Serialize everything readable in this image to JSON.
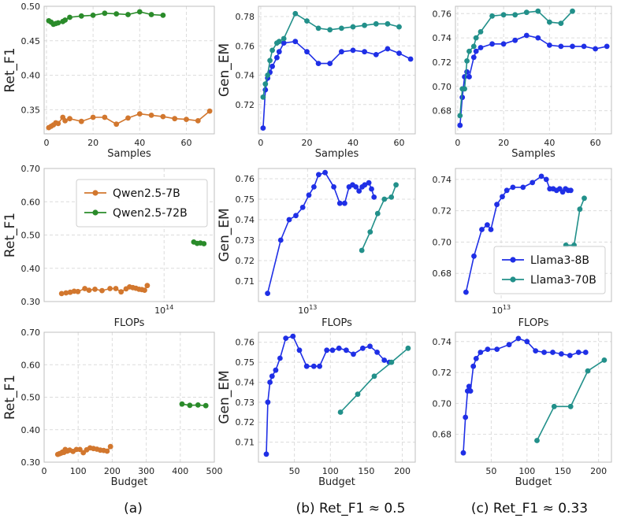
{
  "colors": {
    "qwen7": "#d2772e",
    "qwen72": "#2a8b2a",
    "llama8": "#1f2fe6",
    "llama70": "#22908a",
    "grid": "#dcdcdc",
    "frame": "#bfbfbf"
  },
  "captions": [
    "(a)",
    "(b) Ret_F1 ≈ 0.5",
    "(c) Ret_F1 ≈ 0.33"
  ],
  "legends": {
    "qwen": [
      "Qwen2.5-7B",
      "Qwen2.5-72B"
    ],
    "llama": [
      "Llama3-8B",
      "Llama3-70B"
    ]
  },
  "chart_data": [
    {
      "id": "a1",
      "type": "line",
      "xlabel": "Samples",
      "ylabel": "Ret_F1",
      "xscale": "linear",
      "xlim": [
        -1,
        72
      ],
      "ylim": [
        0.315,
        0.5
      ],
      "xticks": [
        0,
        20,
        40,
        60
      ],
      "xtick_labels": [
        "0",
        "20",
        "40",
        "60"
      ],
      "yticks": [
        0.35,
        0.4,
        0.45,
        0.5
      ],
      "ytick_labels": [
        "0.35",
        "0.40",
        "0.45",
        "0.50"
      ],
      "series": [
        {
          "name": "Qwen2.5-7B",
          "color_key": "qwen7",
          "x": [
            1,
            2,
            3,
            4,
            5,
            7,
            8,
            10,
            15,
            20,
            25,
            30,
            35,
            40,
            45,
            50,
            55,
            60,
            65,
            70
          ],
          "y": [
            0.324,
            0.326,
            0.328,
            0.331,
            0.33,
            0.339,
            0.334,
            0.337,
            0.333,
            0.339,
            0.339,
            0.329,
            0.338,
            0.344,
            0.342,
            0.34,
            0.337,
            0.336,
            0.334,
            0.348
          ]
        },
        {
          "name": "Qwen2.5-72B",
          "color_key": "qwen72",
          "x": [
            1,
            2,
            3,
            4,
            5,
            7,
            8,
            10,
            15,
            20,
            25,
            30,
            35,
            40,
            45,
            50
          ],
          "y": [
            0.479,
            0.477,
            0.474,
            0.475,
            0.476,
            0.478,
            0.48,
            0.484,
            0.486,
            0.487,
            0.49,
            0.489,
            0.488,
            0.492,
            0.488,
            0.487
          ]
        }
      ]
    },
    {
      "id": "b1",
      "type": "line",
      "xlabel": "Samples",
      "ylabel": "Gen_EM",
      "xscale": "linear",
      "xlim": [
        -1,
        67
      ],
      "ylim": [
        0.7,
        0.787
      ],
      "xticks": [
        0,
        20,
        40,
        60
      ],
      "xtick_labels": [
        "0",
        "20",
        "40",
        "60"
      ],
      "yticks": [
        0.72,
        0.74,
        0.76,
        0.78
      ],
      "ytick_labels": [
        "0.72",
        "0.74",
        "0.76",
        "0.78"
      ],
      "series": [
        {
          "name": "Llama3-8B",
          "color_key": "llama8",
          "x": [
            1,
            2,
            3,
            4,
            5,
            7,
            8,
            10,
            15,
            20,
            25,
            30,
            35,
            40,
            45,
            50,
            55,
            60,
            65
          ],
          "y": [
            0.704,
            0.73,
            0.738,
            0.742,
            0.746,
            0.752,
            0.756,
            0.762,
            0.763,
            0.756,
            0.748,
            0.748,
            0.756,
            0.757,
            0.756,
            0.754,
            0.758,
            0.755,
            0.751
          ]
        },
        {
          "name": "Llama3-70B",
          "color_key": "llama70",
          "x": [
            1,
            2,
            3,
            4,
            5,
            7,
            8,
            10,
            15,
            20,
            25,
            30,
            35,
            40,
            45,
            50,
            55,
            60
          ],
          "y": [
            0.725,
            0.734,
            0.74,
            0.75,
            0.757,
            0.762,
            0.763,
            0.765,
            0.782,
            0.777,
            0.772,
            0.771,
            0.772,
            0.773,
            0.774,
            0.775,
            0.775,
            0.773
          ]
        }
      ]
    },
    {
      "id": "c1",
      "type": "line",
      "xlabel": "Samples",
      "ylabel": "",
      "xscale": "linear",
      "xlim": [
        -1,
        67
      ],
      "ylim": [
        0.661,
        0.766
      ],
      "xticks": [
        0,
        20,
        40,
        60
      ],
      "xtick_labels": [
        "0",
        "20",
        "40",
        "60"
      ],
      "yticks": [
        0.68,
        0.7,
        0.72,
        0.74,
        0.76
      ],
      "ytick_labels": [
        "0.68",
        "0.70",
        "0.72",
        "0.74",
        "0.76"
      ],
      "series": [
        {
          "name": "Llama3-8B",
          "color_key": "llama8",
          "x": [
            1,
            2,
            3,
            4,
            5,
            7,
            8,
            10,
            15,
            20,
            25,
            30,
            35,
            40,
            45,
            50,
            55,
            60,
            65
          ],
          "y": [
            0.668,
            0.691,
            0.708,
            0.712,
            0.708,
            0.724,
            0.729,
            0.732,
            0.735,
            0.735,
            0.738,
            0.742,
            0.74,
            0.734,
            0.733,
            0.733,
            0.733,
            0.731,
            0.733
          ]
        },
        {
          "name": "Llama3-70B",
          "color_key": "llama70",
          "x": [
            1,
            2,
            3,
            4,
            5,
            7,
            8,
            10,
            15,
            20,
            25,
            30,
            35,
            40,
            45,
            50
          ],
          "y": [
            0.676,
            0.698,
            0.698,
            0.721,
            0.729,
            0.733,
            0.74,
            0.745,
            0.758,
            0.759,
            0.759,
            0.761,
            0.762,
            0.753,
            0.752,
            0.762
          ]
        }
      ]
    },
    {
      "id": "a2",
      "type": "line",
      "xlabel": "FLOPs",
      "ylabel": "Ret_F1",
      "xscale": "log",
      "xlim": [
        17000000000000.0,
        210000000000000.0
      ],
      "ylim": [
        0.3,
        0.7
      ],
      "xticks": [
        100000000000000.0
      ],
      "xtick_labels": [
        "10^14"
      ],
      "yticks": [
        0.3,
        0.4,
        0.5,
        0.6,
        0.7
      ],
      "ytick_labels": [
        "0.30",
        "0.40",
        "0.50",
        "0.60",
        "0.70"
      ],
      "legend": "qwen",
      "series": [
        {
          "name": "Qwen2.5-7B",
          "color_key": "qwen7",
          "x": [
            22000000000000.0,
            23500000000000.0,
            25000000000000.0,
            26500000000000.0,
            28000000000000.0,
            31000000000000.0,
            33000000000000.0,
            36000000000000.0,
            40000000000000.0,
            45000000000000.0,
            49000000000000.0,
            53000000000000.0,
            57000000000000.0,
            60000000000000.0,
            63000000000000.0,
            66000000000000.0,
            69000000000000.0,
            72000000000000.0,
            75000000000000.0,
            78000000000000.0
          ],
          "y": [
            0.324,
            0.326,
            0.328,
            0.331,
            0.33,
            0.339,
            0.334,
            0.337,
            0.333,
            0.339,
            0.339,
            0.329,
            0.338,
            0.344,
            0.342,
            0.34,
            0.337,
            0.336,
            0.334,
            0.348
          ]
        },
        {
          "name": "Qwen2.5-72B",
          "color_key": "qwen72",
          "x": [
            155000000000000.0,
            163000000000000.0,
            171000000000000.0,
            180000000000000.0
          ],
          "y": [
            0.479,
            0.475,
            0.476,
            0.474
          ]
        }
      ]
    },
    {
      "id": "b2",
      "type": "line",
      "xlabel": "FLOPs",
      "ylabel": "Gen_EM",
      "xscale": "log",
      "xlim": [
        4800000000000.0,
        50000000000000.0
      ],
      "ylim": [
        0.7,
        0.765
      ],
      "xticks": [
        10000000000000.0
      ],
      "xtick_labels": [
        "10^13"
      ],
      "yticks": [
        0.71,
        0.72,
        0.73,
        0.74,
        0.75,
        0.76
      ],
      "ytick_labels": [
        "0.71",
        "0.72",
        "0.73",
        "0.74",
        "0.75",
        "0.76"
      ],
      "series": [
        {
          "name": "Llama3-8B",
          "color_key": "llama8",
          "x": [
            5500000000000.0,
            6700000000000.0,
            7600000000000.0,
            8400000000000.0,
            9300000000000.0,
            10200000000000.0,
            11000000000000.0,
            11800000000000.0,
            13000000000000.0,
            14800000000000.0,
            16200000000000.0,
            17400000000000.0,
            18600000000000.0,
            19600000000000.0,
            20600000000000.0,
            21600000000000.0,
            22600000000000.0,
            23500000000000.0,
            25000000000000.0,
            26000000000000.0,
            27000000000000.0
          ],
          "y": [
            0.704,
            0.73,
            0.74,
            0.742,
            0.746,
            0.752,
            0.756,
            0.762,
            0.763,
            0.756,
            0.748,
            0.748,
            0.756,
            0.757,
            0.756,
            0.754,
            0.756,
            0.757,
            0.758,
            0.755,
            0.751
          ]
        },
        {
          "name": "Llama3-70B",
          "color_key": "llama70",
          "x": [
            22500000000000.0,
            25500000000000.0,
            28500000000000.0,
            31500000000000.0,
            35000000000000.0,
            37500000000000.0
          ],
          "y": [
            0.725,
            0.734,
            0.743,
            0.75,
            0.751,
            0.757
          ]
        }
      ]
    },
    {
      "id": "c2",
      "type": "line",
      "xlabel": "FLOPs",
      "ylabel": "",
      "xscale": "log",
      "xlim": [
        4600000000000.0,
        65000000000000.0
      ],
      "ylim": [
        0.662,
        0.747
      ],
      "xticks": [
        10000000000000.0
      ],
      "xtick_labels": [
        "10^13"
      ],
      "yticks": [
        0.68,
        0.7,
        0.72,
        0.74
      ],
      "ytick_labels": [
        "0.68",
        "0.70",
        "0.72",
        "0.74"
      ],
      "legend": "llama",
      "series": [
        {
          "name": "Llama3-8B",
          "color_key": "llama8",
          "x": [
            5500000000000.0,
            6300000000000.0,
            7200000000000.0,
            7900000000000.0,
            8400000000000.0,
            9300000000000.0,
            10200000000000.0,
            11000000000000.0,
            12200000000000.0,
            14500000000000.0,
            17000000000000.0,
            19800000000000.0,
            21500000000000.0,
            22800000000000.0,
            24200000000000.0,
            25600000000000.0,
            27000000000000.0,
            28400000000000.0,
            29800000000000.0,
            31200000000000.0,
            32600000000000.0
          ],
          "y": [
            0.668,
            0.691,
            0.708,
            0.711,
            0.708,
            0.724,
            0.729,
            0.733,
            0.735,
            0.735,
            0.738,
            0.742,
            0.74,
            0.734,
            0.734,
            0.733,
            0.734,
            0.732,
            0.734,
            0.733,
            0.733
          ]
        },
        {
          "name": "Llama3-70B",
          "color_key": "llama70",
          "x": [
            30000000000000.0,
            34500000000000.0,
            38000000000000.0,
            41000000000000.0
          ],
          "y": [
            0.698,
            0.698,
            0.721,
            0.728
          ]
        }
      ]
    },
    {
      "id": "a3",
      "type": "line",
      "xlabel": "Budget",
      "ylabel": "Ret_F1",
      "xscale": "linear",
      "xlim": [
        0,
        500
      ],
      "ylim": [
        0.3,
        0.7
      ],
      "xticks": [
        0,
        100,
        200,
        300,
        400,
        500
      ],
      "xtick_labels": [
        "0",
        "100",
        "200",
        "300",
        "400",
        "500"
      ],
      "yticks": [
        0.3,
        0.4,
        0.5,
        0.6,
        0.7
      ],
      "ytick_labels": [
        "0.30",
        "0.40",
        "0.50",
        "0.60",
        "0.70"
      ],
      "series": [
        {
          "name": "Qwen2.5-7B",
          "color_key": "qwen7",
          "x": [
            40,
            45,
            50,
            54,
            58,
            62,
            68,
            75,
            85,
            95,
            105,
            115,
            125,
            135,
            145,
            155,
            165,
            175,
            185,
            195
          ],
          "y": [
            0.324,
            0.326,
            0.328,
            0.331,
            0.33,
            0.339,
            0.334,
            0.337,
            0.333,
            0.339,
            0.339,
            0.329,
            0.338,
            0.344,
            0.342,
            0.34,
            0.337,
            0.336,
            0.334,
            0.348
          ]
        },
        {
          "name": "Qwen2.5-72B",
          "color_key": "qwen72",
          "x": [
            405,
            428,
            452,
            475
          ],
          "y": [
            0.479,
            0.475,
            0.476,
            0.474
          ]
        }
      ]
    },
    {
      "id": "b3",
      "type": "line",
      "xlabel": "Budget",
      "ylabel": "Gen_EM",
      "xscale": "linear",
      "xlim": [
        0,
        218
      ],
      "ylim": [
        0.7,
        0.765
      ],
      "xticks": [
        50,
        100,
        150,
        200
      ],
      "xtick_labels": [
        "50",
        "100",
        "150",
        "200"
      ],
      "yticks": [
        0.71,
        0.72,
        0.73,
        0.74,
        0.75,
        0.76
      ],
      "ytick_labels": [
        "0.71",
        "0.72",
        "0.73",
        "0.74",
        "0.75",
        "0.76"
      ],
      "series": [
        {
          "name": "Llama3-8B",
          "color_key": "llama8",
          "x": [
            11,
            13,
            16,
            19,
            24,
            30,
            38,
            48,
            57,
            67,
            77,
            85,
            95,
            103,
            112,
            122,
            132,
            145,
            155,
            165,
            175,
            182
          ],
          "y": [
            0.704,
            0.73,
            0.74,
            0.743,
            0.746,
            0.752,
            0.762,
            0.763,
            0.756,
            0.748,
            0.748,
            0.748,
            0.756,
            0.756,
            0.757,
            0.756,
            0.754,
            0.757,
            0.758,
            0.755,
            0.751,
            0.75
          ]
        },
        {
          "name": "Llama3-70B",
          "color_key": "llama70",
          "x": [
            114,
            138,
            161,
            185,
            208
          ],
          "y": [
            0.725,
            0.734,
            0.743,
            0.75,
            0.757
          ]
        }
      ]
    },
    {
      "id": "c3",
      "type": "line",
      "xlabel": "Budget",
      "ylabel": "",
      "xscale": "linear",
      "xlim": [
        0,
        218
      ],
      "ylim": [
        0.662,
        0.746
      ],
      "xticks": [
        50,
        100,
        150,
        200
      ],
      "xtick_labels": [
        "50",
        "100",
        "150",
        "200"
      ],
      "yticks": [
        0.68,
        0.7,
        0.72,
        0.74
      ],
      "ytick_labels": [
        "0.68",
        "0.70",
        "0.72",
        "0.74"
      ],
      "series": [
        {
          "name": "Llama3-8B",
          "color_key": "llama8",
          "x": [
            11,
            14,
            17,
            19,
            21,
            25,
            29,
            35,
            45,
            58,
            75,
            88,
            100,
            112,
            124,
            136,
            148,
            160,
            172,
            182
          ],
          "y": [
            0.668,
            0.691,
            0.708,
            0.711,
            0.708,
            0.724,
            0.729,
            0.733,
            0.735,
            0.735,
            0.738,
            0.742,
            0.74,
            0.734,
            0.733,
            0.733,
            0.732,
            0.731,
            0.733,
            0.733
          ]
        },
        {
          "name": "Llama3-70B",
          "color_key": "llama70",
          "x": [
            114,
            138,
            161,
            185,
            208
          ],
          "y": [
            0.676,
            0.698,
            0.698,
            0.721,
            0.728
          ]
        }
      ]
    }
  ]
}
